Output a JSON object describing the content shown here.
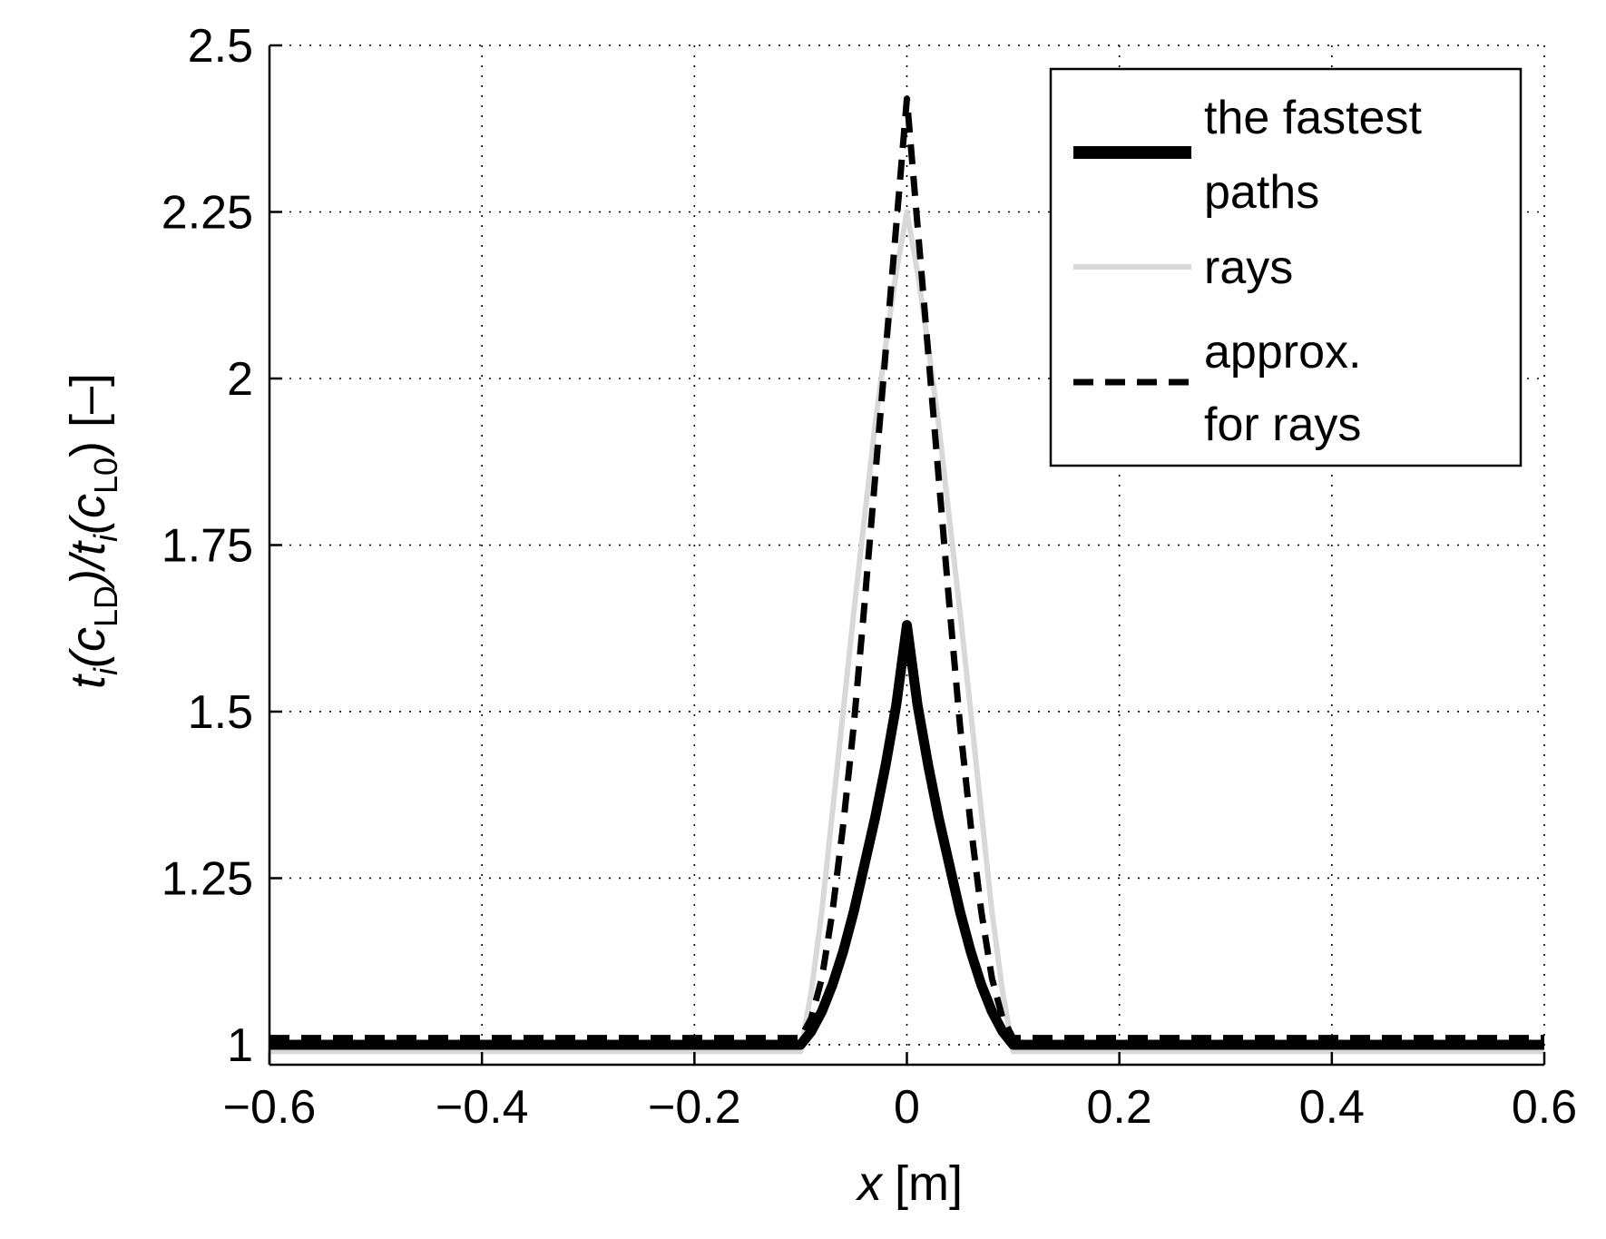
{
  "chart_data": {
    "type": "line",
    "title": "",
    "xlabel": {
      "var": "x",
      "unit": "[m]"
    },
    "ylabel": {
      "t1": "t",
      "s1": "i",
      "t2": "(c",
      "s2": "LD",
      "t3": ")/t",
      "s3": "i",
      "t4": "(c",
      "s4": "L0",
      "t5": ") [–]"
    },
    "xlim": [
      -0.6,
      0.6
    ],
    "ylim": [
      0.97,
      2.5
    ],
    "grid": true,
    "legend_position": "top-right",
    "xticks": [
      -0.6,
      -0.4,
      -0.2,
      0,
      0.2,
      0.4,
      0.6
    ],
    "xtick_labels": [
      "−0.6",
      "−0.4",
      "−0.2",
      "0",
      "0.2",
      "0.4",
      "0.6"
    ],
    "yticks": [
      1,
      1.25,
      1.5,
      1.75,
      2,
      2.25,
      2.5
    ],
    "ytick_labels": [
      "1",
      "1.25",
      "1.5",
      "1.75",
      "2",
      "2.25",
      "2.5"
    ],
    "series": [
      {
        "name": "the fastest paths",
        "legend_lines": [
          "the fastest",
          "paths"
        ],
        "style": "solid-thick",
        "color": "#000000",
        "x": [
          -0.6,
          -0.1,
          -0.09,
          -0.08,
          -0.07,
          -0.06,
          -0.05,
          -0.04,
          -0.03,
          -0.02,
          -0.01,
          0,
          0.01,
          0.02,
          0.03,
          0.04,
          0.05,
          0.06,
          0.07,
          0.08,
          0.09,
          0.1,
          0.6
        ],
        "y": [
          1.0,
          1.0,
          1.02,
          1.05,
          1.09,
          1.14,
          1.2,
          1.27,
          1.34,
          1.42,
          1.51,
          1.63,
          1.51,
          1.42,
          1.34,
          1.27,
          1.2,
          1.14,
          1.09,
          1.05,
          1.02,
          1.0,
          1.0
        ]
      },
      {
        "name": "rays",
        "legend_lines": [
          "rays"
        ],
        "style": "solid-gray",
        "color": "#d8d8d8",
        "x": [
          -0.6,
          -0.1,
          -0.09,
          -0.08,
          -0.07,
          -0.06,
          -0.05,
          -0.04,
          -0.03,
          -0.02,
          -0.01,
          0,
          0.01,
          0.02,
          0.03,
          0.04,
          0.05,
          0.06,
          0.07,
          0.08,
          0.09,
          0.1,
          0.6
        ],
        "y": [
          0.99,
          0.99,
          1.08,
          1.2,
          1.35,
          1.5,
          1.65,
          1.79,
          1.93,
          2.05,
          2.16,
          2.25,
          2.16,
          2.05,
          1.93,
          1.79,
          1.65,
          1.5,
          1.35,
          1.2,
          1.08,
          0.99,
          0.99
        ]
      },
      {
        "name": "approx. for rays",
        "legend_lines": [
          "approx.",
          "for rays"
        ],
        "style": "dashed",
        "color": "#000000",
        "x": [
          -0.6,
          -0.1,
          -0.09,
          -0.08,
          -0.07,
          -0.06,
          -0.05,
          -0.04,
          -0.03,
          -0.02,
          -0.01,
          0,
          0.01,
          0.02,
          0.03,
          0.04,
          0.05,
          0.06,
          0.07,
          0.08,
          0.09,
          0.1,
          0.6
        ],
        "y": [
          1.01,
          1.01,
          1.04,
          1.1,
          1.2,
          1.33,
          1.48,
          1.66,
          1.85,
          2.04,
          2.23,
          2.42,
          2.23,
          2.04,
          1.85,
          1.66,
          1.48,
          1.33,
          1.2,
          1.1,
          1.04,
          1.01,
          1.01
        ]
      }
    ]
  }
}
